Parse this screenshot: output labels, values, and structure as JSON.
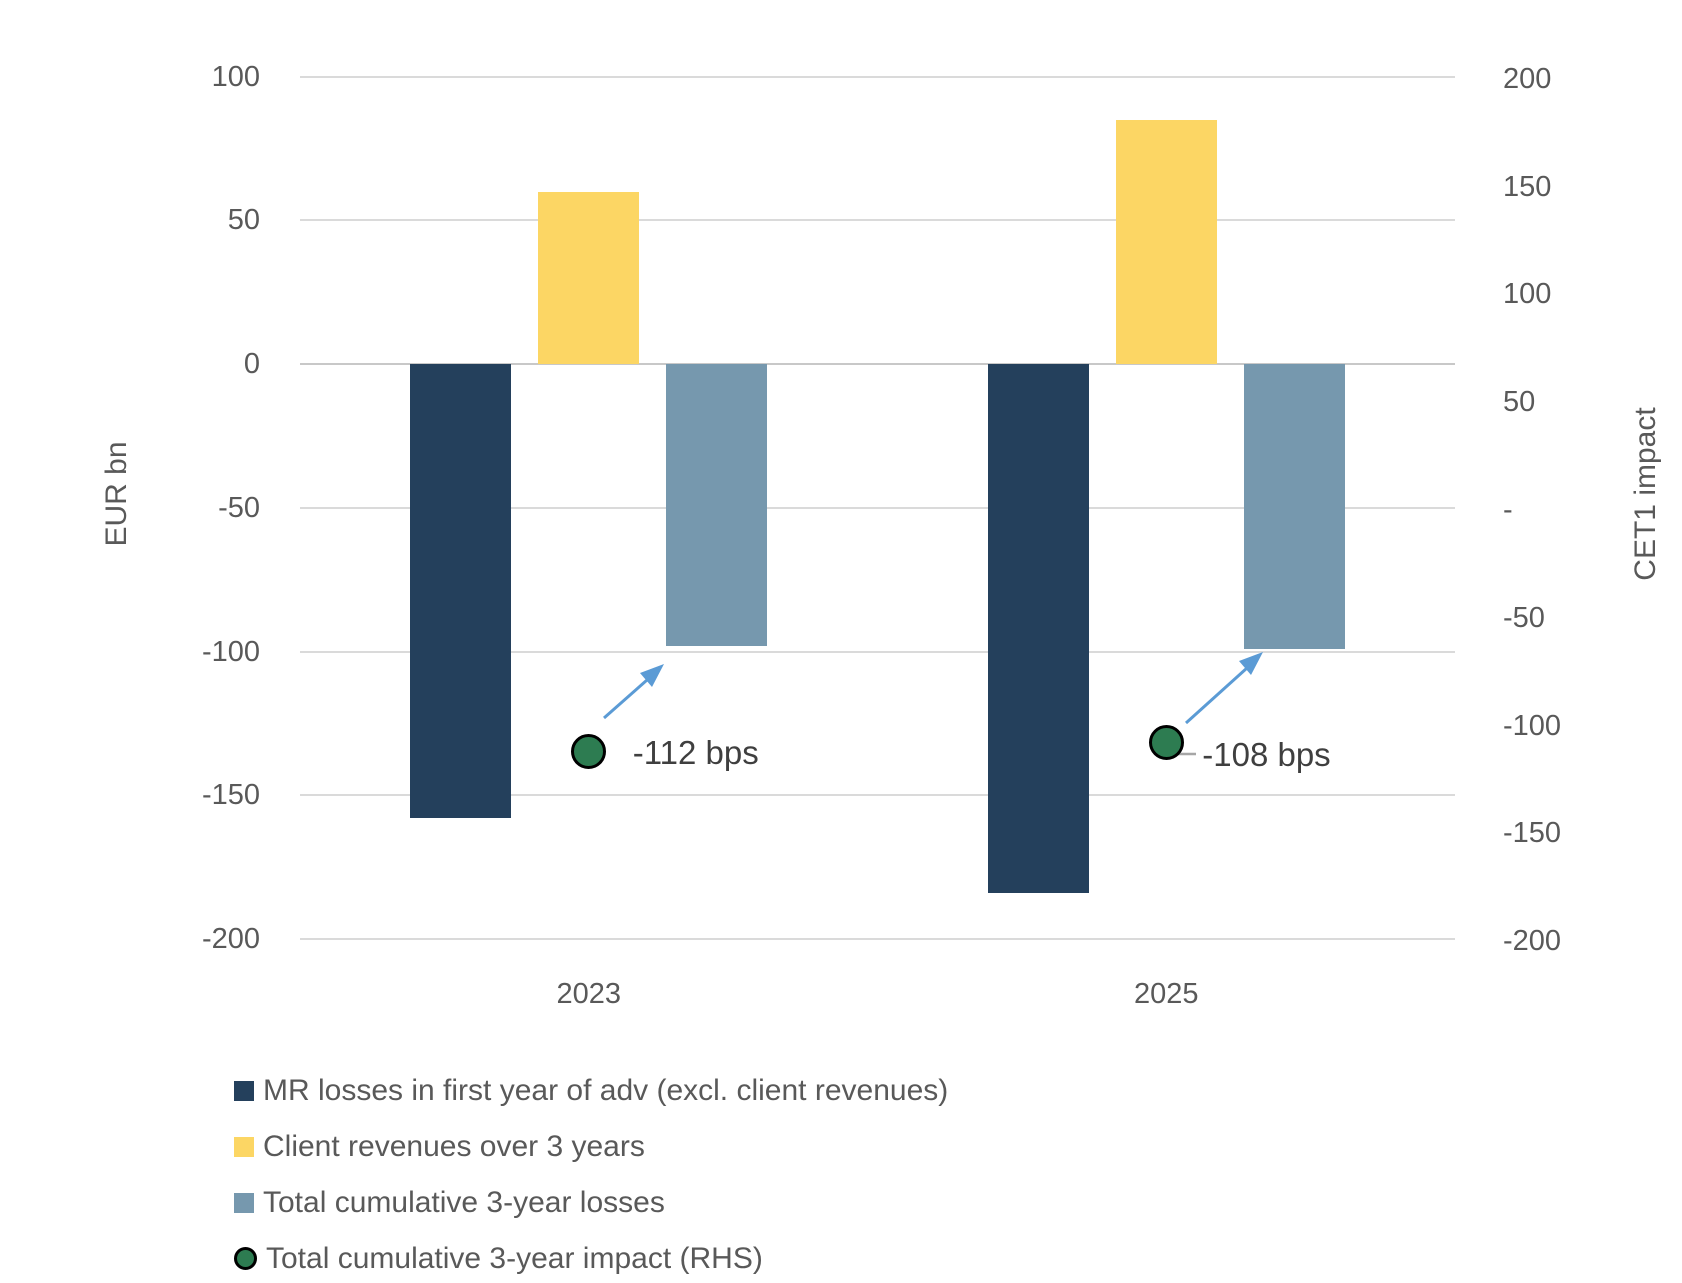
{
  "chart_data": {
    "type": "combo",
    "title": "",
    "categories": [
      "2023",
      "2025"
    ],
    "series": [
      {
        "slug": "mr-losses",
        "name": "MR losses in first year of adv (excl. client revenues)",
        "type": "bar",
        "axis": "left",
        "color": "#24405C",
        "values": [
          -158,
          -184
        ]
      },
      {
        "slug": "client-revenues",
        "name": "Client revenues over 3 years",
        "type": "bar",
        "axis": "left",
        "color": "#FCD664",
        "values": [
          60,
          85
        ]
      },
      {
        "slug": "cumulative-losses",
        "name": "Total cumulative 3-year losses",
        "type": "bar",
        "axis": "left",
        "color": "#7698AE",
        "values": [
          -98,
          -99
        ]
      },
      {
        "slug": "cumulative-impact",
        "name": "Total cumulative 3-year impact (RHS)",
        "type": "point",
        "axis": "right",
        "color": "#2D7C51",
        "marker_border": "#000000",
        "values": [
          -112,
          -108
        ],
        "labels": [
          "-112 bps",
          "-108 bps"
        ]
      }
    ],
    "left_axis": {
      "title": "EUR bn",
      "max": 100,
      "min": -200,
      "step": 50,
      "ticks": [
        "100",
        "50",
        "0",
        "-50",
        "-100",
        "-150",
        "-200"
      ]
    },
    "right_axis": {
      "title": "CET1 impact",
      "max": 200,
      "min": -200,
      "step": 50,
      "ticks": [
        "200",
        "150",
        "100",
        "50",
        "-",
        "-50",
        "-100",
        "-150",
        "-200"
      ]
    },
    "grid": true,
    "legend_position": "bottom-left",
    "annotations": {
      "arrow_color": "#5B9BD5",
      "leader_color": "#A6A6A6"
    }
  },
  "colors": {
    "background": "#FFFFFF",
    "gridline": "#DADADA",
    "zero_line": "#C8C8C8",
    "axis_text": "#595959",
    "point_label_text": "#3F3F3F"
  }
}
